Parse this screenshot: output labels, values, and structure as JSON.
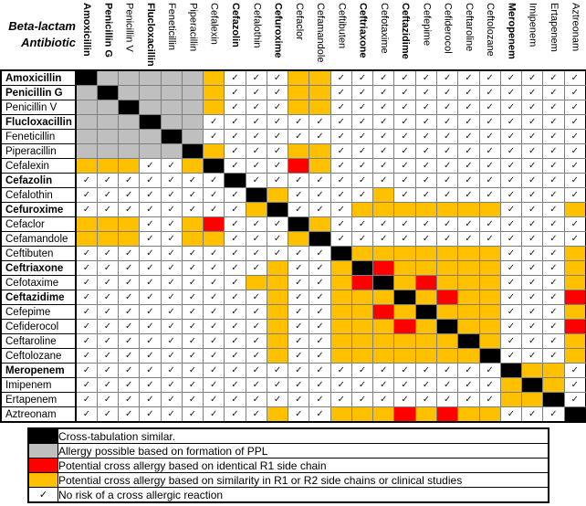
{
  "header": {
    "title_line1": "Beta-lactam",
    "title_line2": "Antibiotic"
  },
  "glyphs": {
    "check": "✓"
  },
  "colors": {
    "self_black": "#000000",
    "ppl_gray": "#bfbfbf",
    "identical_r1_red": "#ff0000",
    "similar_orange": "#ffc000",
    "grid_line": "#7f7f7f"
  },
  "chart_data": {
    "type": "heatmap",
    "title": "Beta-lactam Antibiotic cross-allergy matrix",
    "legend_position": "bottom",
    "antibiotics": [
      {
        "name": "Amoxicillin",
        "bold": true
      },
      {
        "name": "Penicillin G",
        "bold": true
      },
      {
        "name": "Penicillin V",
        "bold": false
      },
      {
        "name": "Flucloxacillin",
        "bold": true
      },
      {
        "name": "Feneticillin",
        "bold": false
      },
      {
        "name": "Piperacillin",
        "bold": false
      },
      {
        "name": "Cefalexin",
        "bold": false
      },
      {
        "name": "Cefazolin",
        "bold": true
      },
      {
        "name": "Cefalothin",
        "bold": false
      },
      {
        "name": "Cefuroxime",
        "bold": true
      },
      {
        "name": "Cefaclor",
        "bold": false
      },
      {
        "name": "Cefamandole",
        "bold": false
      },
      {
        "name": "Ceftibuten",
        "bold": false
      },
      {
        "name": "Ceftriaxone",
        "bold": true
      },
      {
        "name": "Cefotaxime",
        "bold": false
      },
      {
        "name": "Ceftazidime",
        "bold": true
      },
      {
        "name": "Cefepime",
        "bold": false
      },
      {
        "name": "Cefiderocol",
        "bold": false
      },
      {
        "name": "Ceftaroline",
        "bold": false
      },
      {
        "name": "Ceftolozane",
        "bold": false
      },
      {
        "name": "Meropenem",
        "bold": true
      },
      {
        "name": "Imipenem",
        "bold": false
      },
      {
        "name": "Ertapenem",
        "bold": false
      },
      {
        "name": "Aztreonam",
        "bold": false
      }
    ],
    "cell_code_meanings": {
      "B": "cross-tabulation similar (self)",
      "G": "allergy possible based on formation of PPL",
      "R": "potential cross allergy, identical R1 side chain",
      "O": "potential cross allergy, similar R1 or R2 side chains or clinical studies",
      "C": "no risk of a cross allergic reaction (checkmark)"
    },
    "matrix": [
      "BGGGGGOCCCOOCCCCCCCCCCCC",
      "GBGGGGOCCCOOCCCCCCCCCCCC",
      "GGBGGGOCCCOOCCCCCCCCCCCC",
      "GGGBGGCCCCCCCCCCCCCCCCCC",
      "GGGGBGCCCCCCCCCCCCCCCCCC",
      "GGGGGBOCCCOOCCCCCCCCCCCC",
      "OOOCCOBCCCROCCCCCCCCCCCC",
      "CCCCCCCBCCCCCCCCCCCCCCCC",
      "CCCCCCCCBOCCCCOCCCCCCCCC",
      "CCCCCCCCOBCCCOOOOOOOCCCO",
      "OOOCCORCCCBOCCCCCCCCCCCC",
      "OOOCCOOCCCOBCCCCCCCCCCCC",
      "CCCCCCCCCCCCBOOOOOOOCCCO",
      "CCCCCCCCCOCCOBROOOOOCCCO",
      "CCCCCCCCOOCCORBOROOOCCCO",
      "CCCCCCCCCOCCOOOBOROOCCCR",
      "CCCCCCCCCOCCOOROBOOOCCCO",
      "CCCCCCCCCOCCOOOROBOOCCCR",
      "CCCCCCCCCOCCOOOOOOBOCCCO",
      "CCCCCCCCCOCCOOOOOOOBCCCO",
      "CCCCCCCCCCCCCCCCCCCCBOOC",
      "CCCCCCCCCCCCCCCCCCCCOBOC",
      "CCCCCCCCCCCCCCCCCCCCOOBC",
      "CCCCCCCCCOCCOOOROROOCCCB"
    ],
    "legend": [
      {
        "code": "B",
        "label": "Cross-tabulation similar."
      },
      {
        "code": "G",
        "label": "Allergy possible based on formation of PPL"
      },
      {
        "code": "R",
        "label": "Potential cross allergy based on identical R1 side chain"
      },
      {
        "code": "O",
        "label": "Potential cross allergy based on similarity in R1 or R2 side chains or clinical studies"
      },
      {
        "code": "C",
        "label": "No risk of a cross allergic reaction"
      }
    ]
  }
}
